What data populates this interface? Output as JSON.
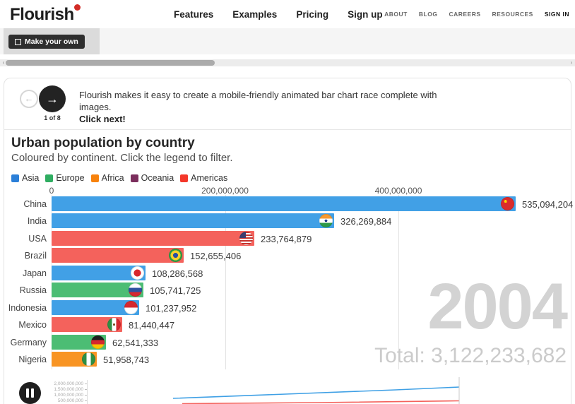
{
  "header": {
    "logo": "Flourish",
    "nav": [
      "Features",
      "Examples",
      "Pricing",
      "Sign up"
    ],
    "secondary_nav": [
      "ABOUT",
      "BLOG",
      "CAREERS",
      "RESOURCES",
      "SIGN IN"
    ]
  },
  "toolbar": {
    "make_your_own": "Make your own"
  },
  "tip": {
    "step": "1 of 8",
    "text": "Flourish makes it easy to create a mobile-friendly animated bar chart race complete with images.",
    "cta": "Click next!",
    "prev_arrow": "←",
    "next_arrow": "→"
  },
  "chart": {
    "title": "Urban population by country",
    "subtitle": "Coloured by continent. Click the legend to filter.",
    "year": "2004",
    "total": "Total: 3,122,233,682"
  },
  "legend": [
    {
      "label": "Asia",
      "color": "#2b7fd8"
    },
    {
      "label": "Europe",
      "color": "#2fad61"
    },
    {
      "label": "Africa",
      "color": "#f7820d"
    },
    {
      "label": "Oceania",
      "color": "#7b2e5d"
    },
    {
      "label": "Americas",
      "color": "#f4372a"
    }
  ],
  "chart_data": {
    "type": "bar",
    "title": "Urban population by country",
    "subtitle": "Coloured by continent. Click the legend to filter.",
    "orientation": "horizontal",
    "year": "2004",
    "total": 3122233682,
    "total_label": "Total: 3,122,233,682",
    "xlabel": "",
    "ylabel": "",
    "axis_ticks": [
      "0",
      "200,000,000",
      "400,000,000"
    ],
    "axis_values": [
      0,
      200000000,
      400000000
    ],
    "xlim": [
      0,
      600000000
    ],
    "grid": true,
    "legend_position": "top",
    "categories": [
      "China",
      "India",
      "USA",
      "Brazil",
      "Japan",
      "Russia",
      "Indonesia",
      "Mexico",
      "Germany",
      "Nigeria"
    ],
    "values": [
      535094204,
      326269884,
      233764879,
      152655406,
      108286568,
      105741725,
      101237952,
      81440447,
      62541333,
      51958743
    ],
    "value_labels": [
      "535,094,204",
      "326,269,884",
      "233,764,879",
      "152,655,406",
      "108,286,568",
      "105,741,725",
      "101,237,952",
      "81,440,447",
      "62,541,333",
      "51,958,743"
    ],
    "continents": [
      "Asia",
      "Asia",
      "Americas",
      "Americas",
      "Asia",
      "Europe",
      "Asia",
      "Americas",
      "Europe",
      "Africa"
    ],
    "bar_colors": {
      "Asia": "#41a0e6",
      "Europe": "#4cbd74",
      "Africa": "#f89423",
      "Oceania": "#8a3d6b",
      "Americas": "#f4625c"
    },
    "flags": [
      "cn",
      "in",
      "us",
      "br",
      "jp",
      "ru",
      "id",
      "mx",
      "de",
      "ng"
    ],
    "timeline": {
      "type": "line",
      "axis_labels": [
        "2,000,000,000",
        "1,500,000,000",
        "1,000,000,000",
        "500,000,000"
      ],
      "series": [
        {
          "name": "Asia",
          "color": "#3fa0e5",
          "points": [
            [
              245,
              564
            ],
            [
              404,
              558
            ],
            [
              560,
              552
            ],
            [
              650,
              548
            ]
          ]
        },
        {
          "name": "Americas",
          "color": "#f4625c",
          "points": [
            [
              258,
              571.5
            ],
            [
              450,
              570
            ],
            [
              650,
              567.5
            ]
          ]
        }
      ],
      "marker_x": 650
    }
  }
}
